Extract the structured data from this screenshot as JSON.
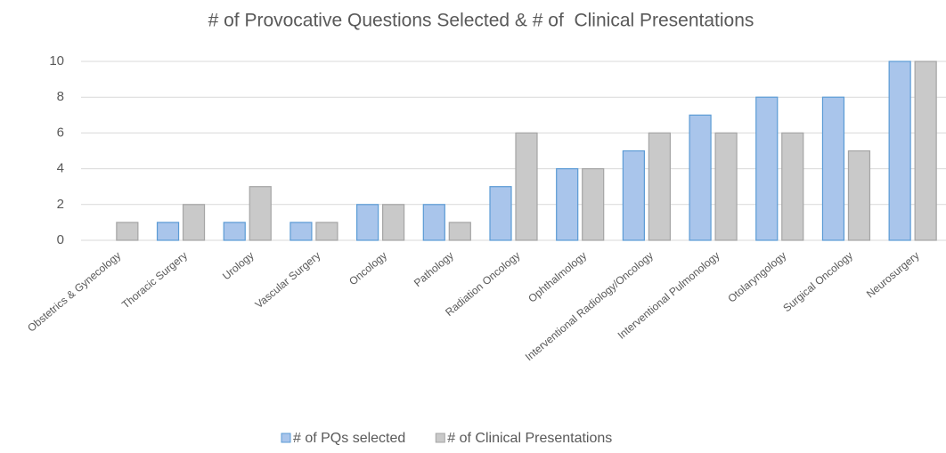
{
  "chart_data": {
    "type": "bar",
    "title": "# of Provocative Questions Selected & # of  Clinical Presentations",
    "categories": [
      "Obstetrics & Gynecology",
      "Thoracic Surgery",
      "Urology",
      "Vascular Surgery",
      "Oncology",
      "Pathology",
      "Radiation Oncology",
      "Ophthalmology",
      "Interventional Radiology/Oncology",
      "Interventional Pulmonology",
      "Otolaryngology",
      "Surgical Oncology",
      "Neurosurgery"
    ],
    "series": [
      {
        "name": "# of PQs selected",
        "color": "#a9c5eb",
        "values": [
          0,
          1,
          1,
          1,
          2,
          2,
          3,
          4,
          5,
          7,
          8,
          8,
          10
        ]
      },
      {
        "name": "# of Clinical Presentations",
        "color": "#c9c9c9",
        "values": [
          1,
          2,
          3,
          1,
          2,
          1,
          6,
          4,
          6,
          6,
          6,
          5,
          10
        ]
      }
    ],
    "ylim": [
      0,
      10
    ],
    "yticks": [
      0,
      2,
      4,
      6,
      8,
      10
    ],
    "grid": true,
    "legend": "bottom"
  }
}
